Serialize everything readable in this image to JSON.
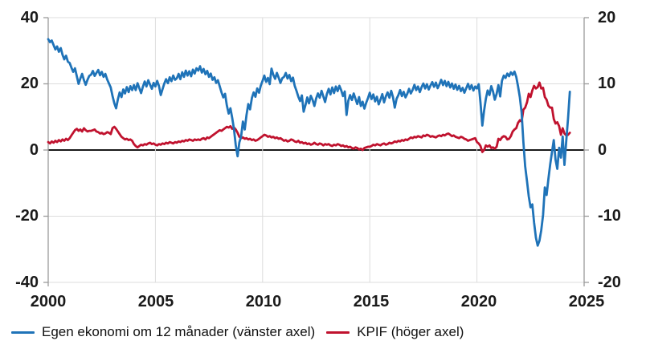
{
  "chart_data": {
    "type": "line",
    "title": "",
    "x_axis": {
      "min": 2000,
      "max": 2025,
      "tick_labels": [
        "2000",
        "2005",
        "2010",
        "2015",
        "2020",
        "2025"
      ]
    },
    "left_axis": {
      "min": -40,
      "max": 40,
      "tick_labels": [
        "40",
        "20",
        "0",
        "-20",
        "-40"
      ]
    },
    "right_axis": {
      "min": -20,
      "max": 20,
      "tick_labels": [
        "20",
        "10",
        "0",
        "-10",
        "-20"
      ]
    },
    "grid": true,
    "legend_position": "bottom",
    "x_start_year": 2000,
    "points_per_year": 12,
    "zero_line_color": "#1a1a1a",
    "gridline_color": "#dcdcdc",
    "axis_line_color": "#9a9a9a",
    "series": [
      {
        "id": "egen-ekonomi",
        "name": "Egen ekonomi om 12 månader (vänster axel)",
        "axis": "left",
        "color": "#1f73b8",
        "values": [
          33.5,
          32.6,
          33.1,
          31.7,
          30.4,
          31.3,
          29.7,
          30.8,
          28.8,
          27.4,
          28.5,
          26.7,
          26.3,
          24.9,
          23.6,
          24.7,
          22.3,
          20.0,
          21.6,
          23.0,
          21.1,
          19.7,
          21.2,
          22.4,
          22.8,
          23.9,
          22.4,
          23.3,
          24.2,
          22.6,
          23.6,
          22.1,
          23.0,
          21.3,
          20.1,
          18.9,
          16.4,
          14.1,
          12.6,
          15.3,
          17.4,
          16.0,
          18.3,
          17.1,
          19.0,
          17.5,
          19.3,
          18.1,
          19.6,
          18.1,
          20.2,
          18.7,
          17.2,
          19.1,
          20.7,
          19.2,
          21.1,
          19.8,
          18.5,
          20.3,
          19.2,
          20.9,
          19.4,
          16.6,
          18.4,
          20.1,
          21.4,
          20.2,
          22.0,
          20.8,
          22.5,
          21.2,
          21.7,
          23.0,
          21.4,
          23.5,
          22.1,
          24.0,
          22.5,
          23.8,
          22.3,
          24.3,
          23.1,
          24.7,
          24.0,
          25.3,
          23.4,
          24.5,
          22.9,
          23.9,
          22.1,
          23.1,
          21.2,
          22.0,
          20.3,
          21.1,
          19.3,
          17.4,
          15.9,
          17.0,
          13.5,
          11.0,
          12.6,
          9.7,
          6.3,
          1.5,
          -1.9,
          2.3,
          4.1,
          8.6,
          6.2,
          10.6,
          13.9,
          12.3,
          15.7,
          17.4,
          16.1,
          18.6,
          17.3,
          19.5,
          20.9,
          22.5,
          20.6,
          21.8,
          19.9,
          24.6,
          22.8,
          21.5,
          23.3,
          21.9,
          20.3,
          21.7,
          22.1,
          23.3,
          21.6,
          22.7,
          20.8,
          21.9,
          19.4,
          17.9,
          16.1,
          14.8,
          16.5,
          11.6,
          13.6,
          15.9,
          14.1,
          16.4,
          15.1,
          13.3,
          15.6,
          17.1,
          15.8,
          17.9,
          16.2,
          14.5,
          16.9,
          18.5,
          16.8,
          18.9,
          17.2,
          19.2,
          17.8,
          19.4,
          18.1,
          16.3,
          17.7,
          10.6,
          14.9,
          16.6,
          15.1,
          17.1,
          15.5,
          13.9,
          16.0,
          13.3,
          14.6,
          12.5,
          14.3,
          15.7,
          17.3,
          15.4,
          16.8,
          14.7,
          16.1,
          13.8,
          15.2,
          16.9,
          14.4,
          16.2,
          17.4,
          15.8,
          17.9,
          16.0,
          12.8,
          15.5,
          16.6,
          18.1,
          16.3,
          17.6,
          15.9,
          17.0,
          18.5,
          17.1,
          18.2,
          19.7,
          18.1,
          19.2,
          17.5,
          19.0,
          20.1,
          18.6,
          19.9,
          18.3,
          19.5,
          20.5,
          19.1,
          20.4,
          18.7,
          19.8,
          21.2,
          19.6,
          20.9,
          19.3,
          20.6,
          18.9,
          20.1,
          18.5,
          19.8,
          18.2,
          19.4,
          17.8,
          18.8,
          17.3,
          18.7,
          20.0,
          18.4,
          19.6,
          18.0,
          19.2,
          18.6,
          19.9,
          14.3,
          7.4,
          11.9,
          15.5,
          18.0,
          16.6,
          19.3,
          17.7,
          15.2,
          17.0,
          19.6,
          16.2,
          20.9,
          22.5,
          21.8,
          23.1,
          22.3,
          23.5,
          22.7,
          23.7,
          22.1,
          19.3,
          15.9,
          11.3,
          2.4,
          -4.9,
          -9.4,
          -14.0,
          -17.3,
          -16.4,
          -21.9,
          -26.5,
          -28.9,
          -27.4,
          -24.3,
          -19.6,
          -11.3,
          -13.6,
          -8.8,
          -4.3,
          -0.6,
          3.0,
          -2.9,
          -5.7,
          0.7,
          -2.3,
          4.1,
          -4.5,
          2.9,
          9.6,
          17.6
        ]
      },
      {
        "id": "kpif",
        "name": "KPIF (höger axel)",
        "axis": "right",
        "color": "#c0122e",
        "values": [
          1.2,
          1.0,
          1.3,
          1.1,
          1.4,
          1.2,
          1.5,
          1.3,
          1.6,
          1.4,
          1.7,
          1.5,
          1.8,
          2.2,
          2.6,
          3.0,
          3.2,
          2.9,
          3.1,
          2.8,
          3.3,
          3.0,
          2.8,
          2.9,
          2.9,
          3.0,
          3.1,
          2.8,
          2.7,
          2.5,
          2.6,
          2.4,
          2.5,
          2.7,
          2.6,
          2.4,
          3.3,
          3.5,
          3.2,
          2.8,
          2.4,
          2.0,
          1.8,
          1.6,
          1.7,
          1.5,
          1.6,
          1.4,
          0.9,
          0.6,
          0.4,
          0.6,
          0.8,
          0.7,
          0.9,
          0.8,
          1.0,
          1.1,
          0.9,
          1.0,
          0.8,
          0.7,
          0.9,
          0.8,
          1.0,
          0.9,
          1.1,
          1.0,
          1.2,
          1.1,
          1.0,
          1.2,
          1.1,
          1.3,
          1.2,
          1.4,
          1.3,
          1.5,
          1.4,
          1.6,
          1.5,
          1.4,
          1.6,
          1.5,
          1.6,
          1.5,
          1.7,
          1.8,
          1.6,
          1.9,
          1.8,
          2.0,
          2.2,
          2.4,
          2.6,
          2.8,
          3.0,
          2.9,
          3.1,
          3.3,
          3.5,
          3.4,
          3.6,
          3.2,
          3.4,
          3.1,
          2.6,
          2.0,
          1.8,
          1.9,
          1.7,
          1.8,
          1.6,
          1.7,
          1.5,
          1.6,
          1.4,
          1.5,
          1.7,
          1.9,
          2.1,
          2.3,
          2.2,
          2.0,
          2.1,
          1.9,
          2.0,
          1.8,
          1.9,
          1.7,
          1.8,
          1.6,
          1.4,
          1.5,
          1.3,
          1.4,
          1.6,
          1.5,
          1.3,
          1.2,
          1.4,
          1.1,
          1.2,
          1.0,
          1.1,
          0.9,
          1.0,
          0.8,
          0.9,
          1.1,
          0.9,
          0.8,
          1.0,
          0.9,
          0.7,
          0.9,
          0.8,
          0.9,
          0.7,
          0.6,
          0.8,
          0.7,
          0.9,
          0.8,
          0.6,
          0.7,
          0.5,
          0.6,
          0.4,
          0.5,
          0.3,
          0.2,
          0.4,
          0.3,
          0.1,
          0.2,
          0.0,
          0.3,
          0.4,
          0.5,
          0.5,
          0.6,
          0.8,
          0.7,
          0.9,
          0.8,
          0.7,
          0.9,
          1.0,
          0.8,
          0.9,
          1.1,
          1.0,
          1.1,
          1.3,
          1.2,
          1.4,
          1.3,
          1.5,
          1.4,
          1.6,
          1.5,
          1.7,
          1.9,
          1.8,
          2.0,
          1.9,
          2.1,
          2.0,
          1.9,
          2.2,
          2.1,
          2.3,
          2.2,
          2.0,
          2.1,
          2.0,
          1.9,
          2.1,
          2.2,
          2.1,
          2.3,
          2.2,
          2.4,
          2.5,
          2.3,
          2.1,
          2.2,
          2.0,
          1.9,
          1.8,
          2.0,
          1.9,
          1.7,
          1.6,
          1.4,
          1.5,
          1.6,
          1.7,
          1.8,
          1.2,
          1.0,
          0.6,
          -0.3,
          0.0,
          0.7,
          0.5,
          0.7,
          0.3,
          0.4,
          0.2,
          0.5,
          1.7,
          1.5,
          1.9,
          2.1,
          2.0,
          1.6,
          1.7,
          2.1,
          2.8,
          3.1,
          3.3,
          4.1,
          4.5,
          4.3,
          6.1,
          6.4,
          7.2,
          8.5,
          8.0,
          9.0,
          9.7,
          9.3,
          9.5,
          10.2,
          9.3,
          9.4,
          8.0,
          7.6,
          6.7,
          6.4,
          6.4,
          4.7,
          4.0,
          4.2,
          3.6,
          2.3,
          3.3,
          2.5,
          2.2,
          2.3,
          2.6
        ]
      }
    ]
  }
}
